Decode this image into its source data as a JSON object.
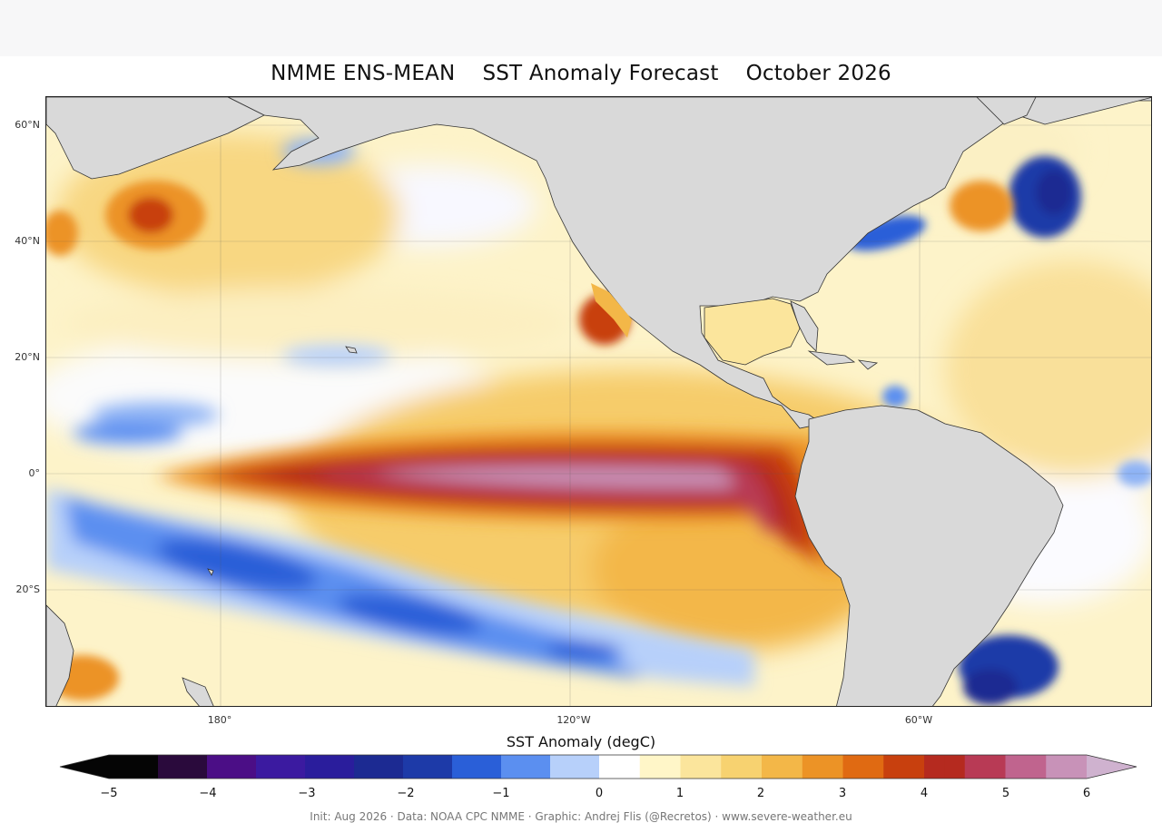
{
  "title": "NMME ENS-MEAN    SST Anomaly Forecast    October 2026",
  "map": {
    "lat_labels": [
      "60°N",
      "40°N",
      "20°N",
      "0°",
      "20°S"
    ],
    "lon_labels": [
      "180°",
      "120°W",
      "60°W"
    ],
    "projection": "PlateCarree",
    "extent_lon": [
      150,
      340
    ],
    "extent_lat": [
      -40,
      65
    ],
    "gridlines": true,
    "land_color": "#d9d9d9",
    "features": [
      {
        "name": "equatorial-pacific-warm-tongue",
        "anomaly_range": [
          4,
          6
        ]
      },
      {
        "name": "south-pacific-cool-band",
        "anomaly_range": [
          -2,
          -1
        ]
      },
      {
        "name": "north-pacific-warm-blob",
        "anomaly_range": [
          2,
          3
        ]
      },
      {
        "name": "baja-california-warm-spot",
        "anomaly_range": [
          3,
          4
        ]
      },
      {
        "name": "gulf-stream-cool-spot",
        "anomaly_range": [
          -2,
          -1
        ]
      },
      {
        "name": "north-atlantic-cool-spot",
        "anomaly_range": [
          -2,
          -1
        ]
      },
      {
        "name": "south-atlantic-cool-spot",
        "anomaly_range": [
          -2,
          -1
        ]
      }
    ]
  },
  "colorbar": {
    "label": "SST Anomaly (degC)",
    "ticks": [
      "−5",
      "−4",
      "−3",
      "−2",
      "−1",
      "0",
      "1",
      "2",
      "3",
      "4",
      "5",
      "6"
    ],
    "min": -5,
    "max": 6,
    "extend": "both",
    "colors": {
      "-5": "#050505",
      "-4.5": "#2a0a3c",
      "-4": "#4b0e86",
      "-3.5": "#3b1aa0",
      "-3": "#2a1d9c",
      "-2.5": "#1c2a92",
      "-2": "#1d3aa8",
      "-1.5": "#2a5fd8",
      "-1": "#5b8ff0",
      "-0.5": "#b7d0fa",
      "0": "#ffffff",
      "0.5": "#fff6c8",
      "1": "#fbe59c",
      "1.5": "#f7d270",
      "2": "#f3b748",
      "2.5": "#ec9326",
      "3": "#e06a12",
      "3.5": "#c8400e",
      "4": "#b52a1f",
      "4.5": "#b83a55",
      "5": "#c0648e",
      "5.5": "#c892b8",
      "6": "#cfb2cf"
    }
  },
  "credit": "Init: Aug 2026 · Data: NOAA CPC NMME · Graphic: Andrej Flis (@Recretos) · www.severe-weather.eu"
}
